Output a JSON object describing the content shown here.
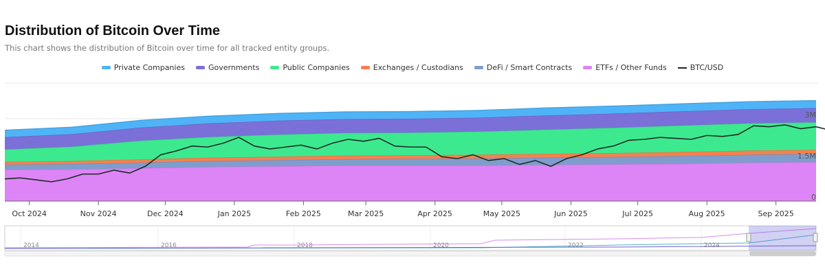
{
  "chart_data": {
    "type": "area",
    "title": "Distribution of Bitcoin Over Time",
    "subtitle": "This chart shows the distribution of Bitcoin over time for all tracked entity groups.",
    "stacked": true,
    "ylim": [
      0,
      4500000
    ],
    "y_ticks": [
      {
        "v": 0,
        "label": "0"
      },
      {
        "v": 1500000,
        "label": "1.5M"
      },
      {
        "v": 3000000,
        "label": "3M"
      }
    ],
    "x_range": [
      "2024-09-20",
      "2025-09-19"
    ],
    "x_ticks": [
      {
        "date": "2024-10-01",
        "label": "Oct 2024"
      },
      {
        "date": "2024-11-01",
        "label": "Nov 2024"
      },
      {
        "date": "2024-12-01",
        "label": "Dec 2024"
      },
      {
        "date": "2025-01-01",
        "label": "Jan 2025"
      },
      {
        "date": "2025-02-01",
        "label": "Feb 2025"
      },
      {
        "date": "2025-03-01",
        "label": "Mar 2025"
      },
      {
        "date": "2025-04-01",
        "label": "Apr 2025"
      },
      {
        "date": "2025-05-01",
        "label": "May 2025"
      },
      {
        "date": "2025-06-01",
        "label": "Jun 2025"
      },
      {
        "date": "2025-07-01",
        "label": "Jul 2025"
      },
      {
        "date": "2025-08-01",
        "label": "Aug 2025"
      },
      {
        "date": "2025-09-01",
        "label": "Sep 2025"
      }
    ],
    "x": [
      "2024-09-20",
      "2024-10-20",
      "2024-11-20",
      "2024-12-20",
      "2025-01-20",
      "2025-02-20",
      "2025-03-20",
      "2025-04-20",
      "2025-05-20",
      "2025-06-20",
      "2025-07-20",
      "2025-08-20",
      "2025-09-19"
    ],
    "series": [
      {
        "name": "ETFs / Other Funds",
        "color": "#dd84f6",
        "values": [
          1150000,
          1160000,
          1200000,
          1250000,
          1270000,
          1300000,
          1300000,
          1300000,
          1320000,
          1340000,
          1360000,
          1400000,
          1420000
        ]
      },
      {
        "name": "DeFi / Smart Contracts",
        "color": "#7f9dcc",
        "values": [
          180000,
          190000,
          200000,
          210000,
          220000,
          230000,
          240000,
          250000,
          260000,
          270000,
          280000,
          290000,
          300000
        ]
      },
      {
        "name": "Exchanges / Custodians",
        "color": "#f5814f",
        "values": [
          100000,
          110000,
          120000,
          120000,
          130000,
          130000,
          130000,
          140000,
          140000,
          140000,
          150000,
          150000,
          150000
        ]
      },
      {
        "name": "Public Companies",
        "color": "#3de98f",
        "values": [
          450000,
          520000,
          680000,
          750000,
          800000,
          820000,
          820000,
          840000,
          880000,
          920000,
          960000,
          990000,
          1000000
        ]
      },
      {
        "name": "Governments",
        "color": "#7a70d8",
        "values": [
          450000,
          460000,
          480000,
          500000,
          510000,
          510000,
          510000,
          510000,
          520000,
          520000,
          520000,
          520000,
          520000
        ]
      },
      {
        "name": "Private Companies",
        "color": "#4fb4f7",
        "values": [
          250000,
          250000,
          260000,
          260000,
          260000,
          260000,
          260000,
          260000,
          270000,
          270000,
          270000,
          270000,
          270000
        ]
      }
    ],
    "line": {
      "name": "BTC/USD",
      "color": "#1c2a24",
      "ylim": [
        40000,
        168000
      ],
      "start": "2024-09-20",
      "step_days": 7,
      "values": [
        63000,
        64000,
        62000,
        60000,
        63000,
        68000,
        68000,
        72000,
        69000,
        76000,
        88000,
        92000,
        97000,
        96000,
        100000,
        106000,
        97000,
        94000,
        96000,
        98000,
        94000,
        100000,
        104000,
        102000,
        105000,
        97000,
        96000,
        96000,
        86000,
        84000,
        88000,
        82000,
        84000,
        78000,
        82000,
        76000,
        84000,
        88000,
        94000,
        97000,
        103000,
        104000,
        106000,
        105000,
        104000,
        108000,
        107000,
        109000,
        118000,
        117000,
        119000,
        115000,
        117000,
        113000,
        111000,
        115000
      ]
    },
    "legend": [
      "Private Companies",
      "Governments",
      "Public Companies",
      "Exchanges / Custodians",
      "DeFi / Smart Contracts",
      "ETFs / Other Funds",
      "BTC/USD"
    ],
    "legend_placement": "top-center",
    "navigator": {
      "year_labels": [
        "2014",
        "2016",
        "2018",
        "2020",
        "2022",
        "2024"
      ]
    }
  }
}
